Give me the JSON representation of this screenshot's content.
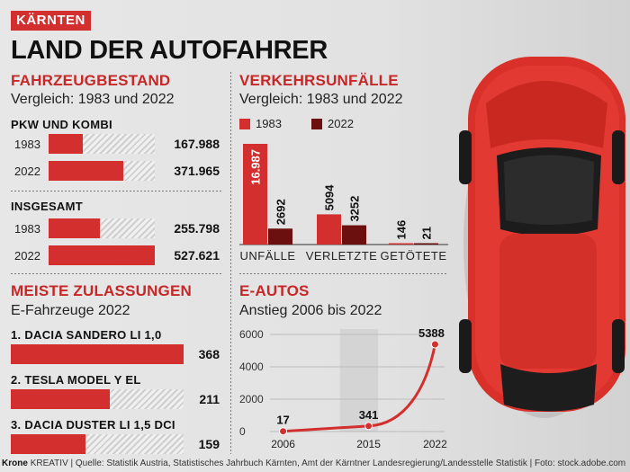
{
  "region": "KÄRNTEN",
  "headline": "LAND DER AUTOFAHRER",
  "colors": {
    "accent": "#d32f2f",
    "dark": "#6b0f0f",
    "hatch": "#cfcfcf"
  },
  "fahrzeugbestand": {
    "title": "FAHRZEUGBESTAND",
    "subtitle": "Vergleich: 1983 und 2022",
    "groups": [
      {
        "title": "PKW UND KOMBI",
        "rows": [
          {
            "label": "1983",
            "value": 167988,
            "display": "167.988"
          },
          {
            "label": "2022",
            "value": 371965,
            "display": "371.965"
          }
        ]
      },
      {
        "title": "INSGESAMT",
        "rows": [
          {
            "label": "1983",
            "value": 255798,
            "display": "255.798"
          },
          {
            "label": "2022",
            "value": 527621,
            "display": "527.621"
          }
        ]
      }
    ]
  },
  "zulassungen": {
    "title": "MEISTE ZULASSUNGEN",
    "subtitle": "E-Fahrzeuge 2022",
    "items": [
      {
        "label": "1. DACIA SANDERO LI 1,0",
        "value": 368,
        "display": "368"
      },
      {
        "label": "2. TESLA MODEL Y EL",
        "value": 211,
        "display": "211"
      },
      {
        "label": "3. DACIA DUSTER LI 1,5 DCI",
        "value": 159,
        "display": "159"
      }
    ]
  },
  "unfaelle": {
    "title": "VERKEHRSUNFÄLLE",
    "subtitle": "Vergleich: 1983 und 2022",
    "legend": [
      {
        "label": "1983",
        "color": "#d32f2f"
      },
      {
        "label": "2022",
        "color": "#6b0f0f"
      }
    ]
  },
  "eautos": {
    "title": "E-AUTOS",
    "subtitle": "Anstieg 2006 bis 2022"
  },
  "footer": {
    "brand": "Krone",
    "text": "KREATIV | Quelle: Statistik Austria, Statistisches Jahrbuch Kärnten, Amt der Kärntner Landesregierung/Landesstelle Statistik | Foto: stock.adobe.com"
  },
  "chart_data": [
    {
      "type": "bar",
      "title": "PKW UND KOMBI",
      "categories": [
        "1983",
        "2022"
      ],
      "values": [
        167988,
        371965
      ]
    },
    {
      "type": "bar",
      "title": "INSGESAMT",
      "categories": [
        "1983",
        "2022"
      ],
      "values": [
        255798,
        527621
      ]
    },
    {
      "type": "bar",
      "title": "MEISTE ZULASSUNGEN",
      "categories": [
        "1. DACIA SANDERO LI 1,0",
        "2. TESLA MODEL Y EL",
        "3. DACIA DUSTER LI 1,5 DCI"
      ],
      "values": [
        368,
        211,
        159
      ]
    },
    {
      "type": "bar",
      "title": "VERKEHRSUNFÄLLE",
      "categories": [
        "UNFÄLLE",
        "VERLETZTE",
        "GETÖTETE"
      ],
      "series": [
        {
          "name": "1983",
          "values": [
            16987,
            5094,
            146
          ],
          "labels": [
            "16.987",
            "5094",
            "146"
          ]
        },
        {
          "name": "2022",
          "values": [
            2692,
            3252,
            21
          ],
          "labels": [
            "2692",
            "3252",
            "21"
          ]
        }
      ]
    },
    {
      "type": "line",
      "title": "E-AUTOS",
      "x": [
        2006,
        2015,
        2022
      ],
      "y": [
        17,
        341,
        5388
      ],
      "point_labels": [
        "17",
        "341",
        "5388"
      ],
      "x_ticks": [
        "2006",
        "2015",
        "2022"
      ],
      "y_ticks": [
        "0",
        "2000",
        "4000",
        "6000"
      ],
      "ylim": [
        0,
        6000
      ],
      "xlim": [
        2005,
        2023
      ],
      "highlight_band": [
        2012,
        2016
      ],
      "grid": true
    }
  ]
}
